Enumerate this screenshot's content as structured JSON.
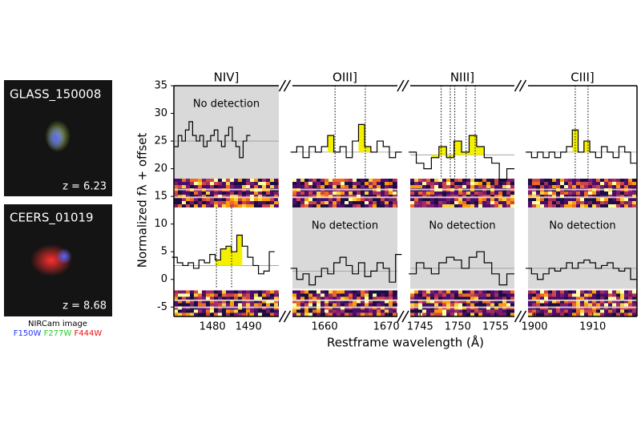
{
  "images": [
    {
      "name": "GLASS_150008",
      "z": "z = 6.23"
    },
    {
      "name": "CEERS_01019",
      "z": "z = 8.68"
    }
  ],
  "image_caption": "NIRCam image",
  "filters": [
    {
      "name": "F150W",
      "color": "#2233ff"
    },
    {
      "name": "F277W",
      "color": "#22cc22"
    },
    {
      "name": "F444W",
      "color": "#ee1111"
    }
  ],
  "chart_data": {
    "type": "line",
    "ylabel": "Normalized fλ + offset",
    "xlabel": "Restframe wavelength (Å)",
    "ylim": [
      -6.7,
      35
    ],
    "yticks": [
      -5,
      0,
      5,
      10,
      15,
      20,
      25,
      30,
      35
    ],
    "fill_color": "#f5f000",
    "panels": [
      {
        "title": "NIV]",
        "xlim": [
          1469.3,
          1498.4
        ],
        "xticks": [
          1480,
          1490
        ],
        "lines": [
          1481.1,
          1485.3
        ],
        "series": [
          {
            "detected": false,
            "note": "No detection",
            "continuum": 25,
            "highlights": [],
            "x": [
              1470,
              1471,
              1472,
              1473,
              1474,
              1475,
              1476,
              1477,
              1478,
              1479,
              1480,
              1481,
              1482,
              1483,
              1484,
              1485,
              1486,
              1487,
              1488,
              1489,
              1490
            ],
            "values": [
              24,
              26,
              25,
              27,
              28.5,
              26,
              25,
              26,
              24,
              25,
              26,
              27,
              25,
              24,
              26,
              27.5,
              25,
              24,
              22,
              25,
              26
            ]
          },
          {
            "detected": true,
            "continuum": 2.5,
            "highlights": [
              [
                1481.5,
                1487.5
              ]
            ],
            "x": [
              1469.5,
              1471,
              1472.5,
              1474,
              1475.5,
              1477,
              1478.5,
              1480,
              1481.5,
              1483,
              1484.5,
              1486,
              1487.5,
              1489,
              1490.5,
              1492,
              1493.5,
              1495,
              1496.5
            ],
            "values": [
              4,
              3,
              2.5,
              3,
              2,
              3.5,
              3,
              4.5,
              3.5,
              5.5,
              6,
              5,
              8,
              6,
              4,
              2.5,
              1,
              1.5,
              5
            ]
          }
        ]
      },
      {
        "title": "OIII]",
        "xlim": [
          1654.8,
          1671.8
        ],
        "xticks": [
          1660,
          1670
        ],
        "lines": [
          1661.7,
          1666.6
        ],
        "series": [
          {
            "detected": true,
            "continuum": 23,
            "highlights": [
              [
                1661,
                1662
              ],
              [
                1666,
                1667
              ]
            ],
            "x": [
              1655,
              1656,
              1657,
              1658,
              1659,
              1660,
              1661,
              1662,
              1663,
              1664,
              1665,
              1666,
              1667,
              1668,
              1669,
              1670,
              1671,
              1672
            ],
            "values": [
              23,
              24,
              22,
              24,
              23,
              24,
              26,
              23,
              24,
              22,
              25,
              28,
              24,
              23,
              25,
              24,
              22,
              23
            ]
          },
          {
            "detected": false,
            "note": "No detection",
            "continuum": 1.5,
            "highlights": [],
            "x": [
              1655,
              1656,
              1657,
              1658,
              1659,
              1660,
              1661,
              1662,
              1663,
              1664,
              1665,
              1666,
              1667,
              1668,
              1669,
              1670,
              1671,
              1672
            ],
            "values": [
              2,
              0,
              1,
              -1,
              0.5,
              2,
              1,
              3,
              4,
              2.5,
              1,
              3,
              0.5,
              1.5,
              3,
              2,
              -0.5,
              4.5
            ]
          }
        ]
      },
      {
        "title": "NIII]",
        "xlim": [
          1743.7,
          1757.5
        ],
        "xticks": [
          1745,
          1750,
          1755
        ],
        "lines": [
          1747.8,
          1749,
          1749.6,
          1751.1,
          1752.3
        ],
        "series": [
          {
            "detected": true,
            "continuum": 22.5,
            "highlights": [
              [
                1747,
                1748
              ],
              [
                1749,
                1750
              ],
              [
                1751,
                1753
              ]
            ],
            "x": [
              1744,
              1745,
              1746,
              1747,
              1748,
              1749,
              1750,
              1751,
              1752,
              1753,
              1754,
              1755,
              1756,
              1757
            ],
            "values": [
              23,
              21,
              20,
              22,
              24,
              22,
              25,
              23,
              26,
              24,
              22,
              21,
              18,
              20
            ]
          },
          {
            "detected": false,
            "note": "No detection",
            "continuum": 2,
            "highlights": [],
            "x": [
              1744,
              1745,
              1746,
              1747,
              1748,
              1749,
              1750,
              1751,
              1752,
              1753,
              1754,
              1755,
              1756,
              1757
            ],
            "values": [
              1,
              3,
              2,
              1,
              3,
              4,
              3.5,
              2,
              4,
              5,
              3,
              1,
              -1,
              1
            ]
          }
        ]
      },
      {
        "title": "CIII]",
        "xlim": [
          1898.9,
          1917.6
        ],
        "xticks": [
          1900,
          1910
        ],
        "lines": [
          1907,
          1909.2
        ],
        "series": [
          {
            "detected": true,
            "continuum": 23,
            "highlights": [
              [
                1906.5,
                1907.5
              ],
              [
                1908.5,
                1910
              ]
            ],
            "x": [
              1899,
              1900,
              1901,
              1902,
              1903,
              1904,
              1905,
              1906,
              1907,
              1908,
              1909,
              1910,
              1911,
              1912,
              1913,
              1914,
              1915,
              1916,
              1917
            ],
            "values": [
              23,
              22,
              23,
              22,
              23,
              22,
              23,
              24,
              27,
              23,
              25,
              23,
              22,
              24,
              23,
              22,
              24,
              23,
              21
            ]
          },
          {
            "detected": false,
            "note": "No detection",
            "continuum": 2,
            "highlights": [],
            "x": [
              1899,
              1900,
              1901,
              1902,
              1903,
              1904,
              1905,
              1906,
              1907,
              1908,
              1909,
              1910,
              1911,
              1912,
              1913,
              1914,
              1915,
              1916,
              1917
            ],
            "values": [
              2,
              1,
              0,
              1,
              2,
              1.5,
              2,
              3,
              2,
              3,
              3.5,
              3,
              2,
              2.5,
              3,
              2,
              1.5,
              2,
              0
            ]
          }
        ]
      }
    ]
  }
}
